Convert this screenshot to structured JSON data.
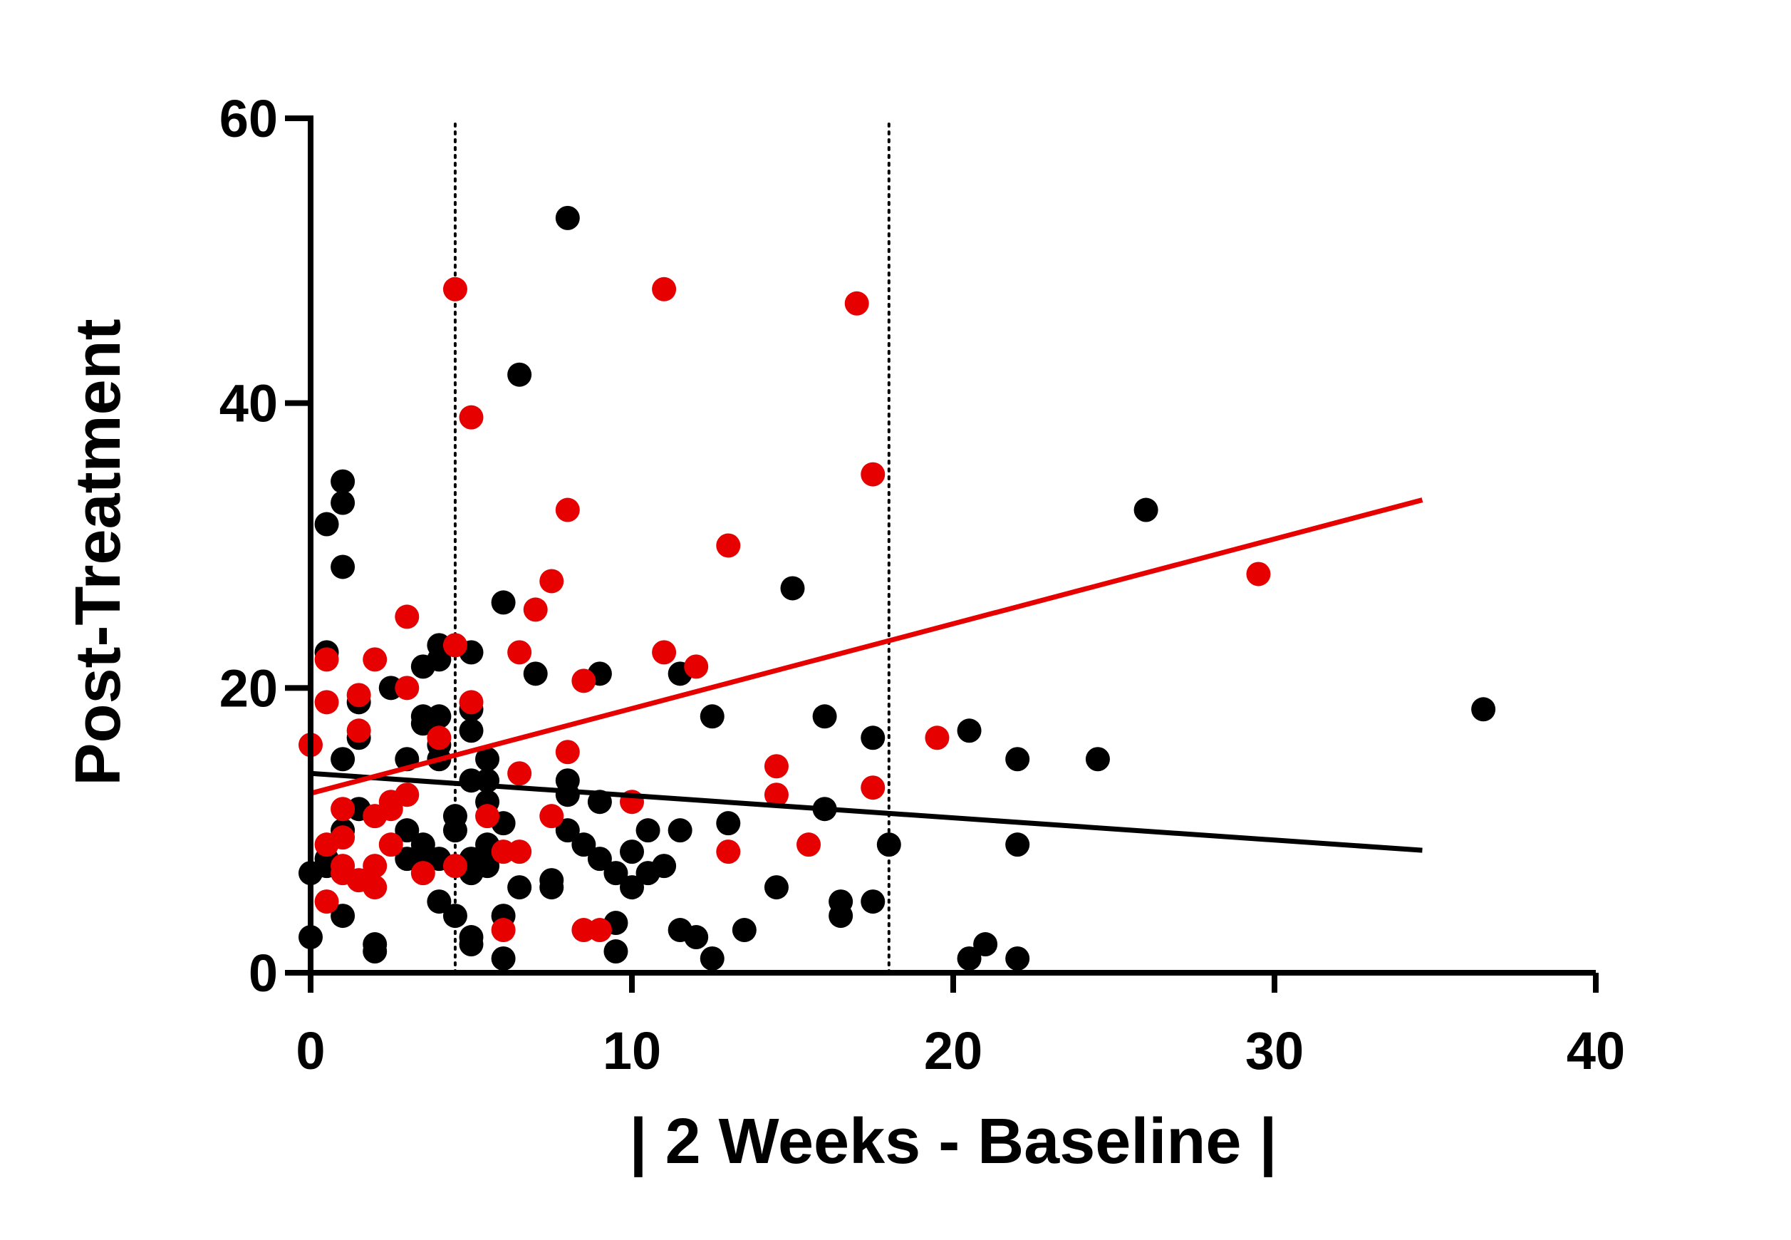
{
  "chart_data": {
    "type": "scatter",
    "title": "",
    "xlabel": "| 2 Weeks - Baseline |",
    "ylabel": "Post-Treatment",
    "xlim": [
      0,
      40
    ],
    "ylim": [
      0,
      60
    ],
    "xticks": [
      0,
      10,
      20,
      30,
      40
    ],
    "yticks": [
      0,
      20,
      40,
      60
    ],
    "x_tick_labels": [
      "0",
      "10",
      "20",
      "30",
      "40"
    ],
    "y_tick_labels": [
      "0",
      "20",
      "40",
      "60"
    ],
    "reference_lines_x": [
      4.5,
      18
    ],
    "grid": false,
    "series": [
      {
        "name": "black group",
        "color": "#000000",
        "points": [
          [
            0,
            7
          ],
          [
            0,
            2.5
          ],
          [
            0.5,
            31.5
          ],
          [
            0.5,
            22.5
          ],
          [
            0.5,
            8
          ],
          [
            0.5,
            7.5
          ],
          [
            1,
            34.5
          ],
          [
            1,
            33
          ],
          [
            1,
            28.5
          ],
          [
            1,
            15
          ],
          [
            1,
            10
          ],
          [
            1,
            4
          ],
          [
            1.5,
            19
          ],
          [
            1.5,
            16.5
          ],
          [
            1.5,
            11.5
          ],
          [
            2,
            2
          ],
          [
            2,
            1.5
          ],
          [
            2.5,
            20
          ],
          [
            3,
            15
          ],
          [
            3,
            10
          ],
          [
            3,
            8
          ],
          [
            3.5,
            21.5
          ],
          [
            3.5,
            18
          ],
          [
            3.5,
            17.5
          ],
          [
            3.5,
            9
          ],
          [
            3.5,
            8
          ],
          [
            4,
            23
          ],
          [
            4,
            22
          ],
          [
            4,
            18
          ],
          [
            4,
            16
          ],
          [
            4,
            15
          ],
          [
            4,
            8
          ],
          [
            4,
            5
          ],
          [
            4.5,
            11
          ],
          [
            4.5,
            10
          ],
          [
            4.5,
            4
          ],
          [
            5,
            22.5
          ],
          [
            5,
            18.5
          ],
          [
            5,
            17
          ],
          [
            5,
            13.5
          ],
          [
            5,
            8
          ],
          [
            5,
            7
          ],
          [
            5,
            2.5
          ],
          [
            5,
            2
          ],
          [
            5.5,
            15
          ],
          [
            5.5,
            13.5
          ],
          [
            5.5,
            12
          ],
          [
            5.5,
            9
          ],
          [
            5.5,
            7.5
          ],
          [
            6,
            26
          ],
          [
            6,
            10.5
          ],
          [
            6,
            4
          ],
          [
            6,
            1
          ],
          [
            6.5,
            42
          ],
          [
            6.5,
            6
          ],
          [
            7,
            21
          ],
          [
            7.5,
            6.5
          ],
          [
            7.5,
            6
          ],
          [
            8,
            53
          ],
          [
            8,
            13.5
          ],
          [
            8,
            12.5
          ],
          [
            8,
            10
          ],
          [
            8.5,
            9
          ],
          [
            9,
            21
          ],
          [
            9,
            12
          ],
          [
            9,
            8
          ],
          [
            9.5,
            7
          ],
          [
            9.5,
            3.5
          ],
          [
            9.5,
            1.5
          ],
          [
            10,
            8.5
          ],
          [
            10,
            6
          ],
          [
            10.5,
            10
          ],
          [
            10.5,
            7
          ],
          [
            11,
            7.5
          ],
          [
            11.5,
            21
          ],
          [
            11.5,
            10
          ],
          [
            11.5,
            3
          ],
          [
            12,
            2.5
          ],
          [
            12.5,
            18
          ],
          [
            12.5,
            1
          ],
          [
            13,
            10.5
          ],
          [
            13.5,
            3
          ],
          [
            14.5,
            6
          ],
          [
            15,
            27
          ],
          [
            16,
            18
          ],
          [
            16,
            11.5
          ],
          [
            16.5,
            5
          ],
          [
            16.5,
            4
          ],
          [
            17.5,
            16.5
          ],
          [
            17.5,
            5
          ],
          [
            18,
            9
          ],
          [
            20.5,
            17
          ],
          [
            20.5,
            1
          ],
          [
            21,
            2
          ],
          [
            22,
            15
          ],
          [
            22,
            9
          ],
          [
            22,
            1
          ],
          [
            24.5,
            15
          ],
          [
            26,
            32.5
          ],
          [
            36.5,
            18.5
          ]
        ],
        "trend_line": {
          "x": [
            0,
            34.6
          ],
          "y": [
            14,
            8.6
          ]
        }
      },
      {
        "name": "red group",
        "color": "#e60000",
        "points": [
          [
            0,
            16
          ],
          [
            0.5,
            22
          ],
          [
            0.5,
            19
          ],
          [
            0.5,
            9
          ],
          [
            0.5,
            5
          ],
          [
            1,
            11.5
          ],
          [
            1,
            9.5
          ],
          [
            1,
            7.5
          ],
          [
            1,
            7
          ],
          [
            1.5,
            19.5
          ],
          [
            1.5,
            17
          ],
          [
            1.5,
            6.5
          ],
          [
            2,
            22
          ],
          [
            2,
            11
          ],
          [
            2,
            7.5
          ],
          [
            2,
            6
          ],
          [
            2.5,
            12
          ],
          [
            2.5,
            11.5
          ],
          [
            2.5,
            9
          ],
          [
            3,
            25
          ],
          [
            3,
            20
          ],
          [
            3,
            12.5
          ],
          [
            3.5,
            7
          ],
          [
            4,
            16.5
          ],
          [
            4.5,
            23
          ],
          [
            4.5,
            7.5
          ],
          [
            4.5,
            48
          ],
          [
            5,
            39
          ],
          [
            5,
            19
          ],
          [
            5.5,
            11
          ],
          [
            6,
            8.5
          ],
          [
            6,
            3
          ],
          [
            6.5,
            22.5
          ],
          [
            6.5,
            14
          ],
          [
            6.5,
            8.5
          ],
          [
            7,
            25.5
          ],
          [
            7.5,
            27.5
          ],
          [
            7.5,
            11
          ],
          [
            8,
            32.5
          ],
          [
            8,
            15.5
          ],
          [
            8.5,
            20.5
          ],
          [
            8.5,
            3
          ],
          [
            9,
            3
          ],
          [
            10,
            12
          ],
          [
            11,
            48
          ],
          [
            11,
            22.5
          ],
          [
            12,
            21.5
          ],
          [
            13,
            30
          ],
          [
            13,
            8.5
          ],
          [
            14.5,
            14.5
          ],
          [
            14.5,
            12.5
          ],
          [
            15.5,
            9
          ],
          [
            17,
            47
          ],
          [
            17.5,
            35
          ],
          [
            17.5,
            13
          ],
          [
            19.5,
            16.5
          ],
          [
            29.5,
            28
          ]
        ],
        "trend_line": {
          "x": [
            0,
            34.6
          ],
          "y": [
            12.6,
            33.2
          ]
        }
      }
    ]
  }
}
